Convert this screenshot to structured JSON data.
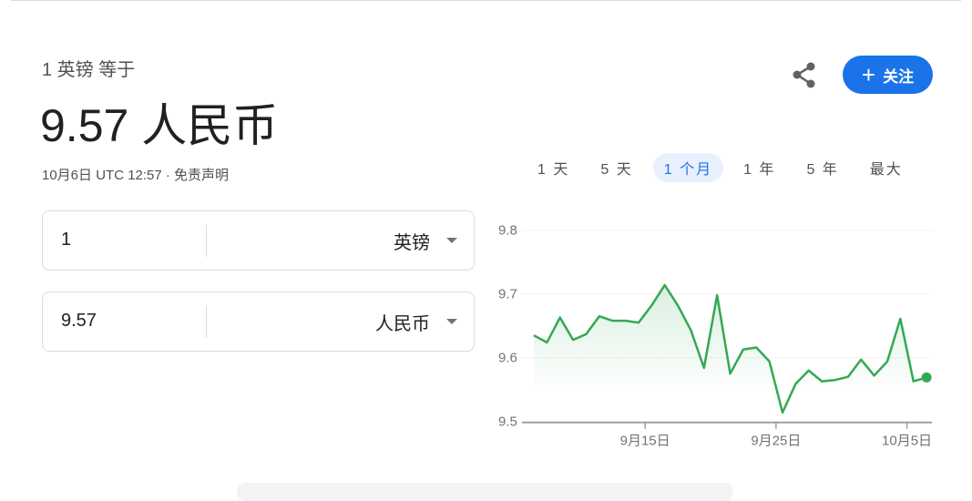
{
  "header": {
    "subtitle": "1 英镑 等于",
    "result": "9.57 人民币",
    "meta": "10月6日 UTC 12:57 · 免责声明",
    "follow_label": "关注",
    "follow_icon": "plus-icon",
    "share_icon": "share-icon"
  },
  "ranges": [
    {
      "label": "1 天"
    },
    {
      "label": "5 天"
    },
    {
      "label": "1 个月",
      "active": true
    },
    {
      "label": "1 年"
    },
    {
      "label": "5 年"
    },
    {
      "label": "最大"
    }
  ],
  "converter": {
    "from": {
      "value": "1",
      "currency": "英镑"
    },
    "to": {
      "value": "9.57",
      "currency": "人民币"
    }
  },
  "colors": {
    "line": "#34a853",
    "accent": "#1a73e8"
  },
  "chart_data": {
    "type": "line",
    "ylim": [
      9.5,
      9.8
    ],
    "yticks": [
      "9.8",
      "9.7",
      "9.6",
      "9.5"
    ],
    "xticks": [
      {
        "label": "9月15日",
        "day": 9
      },
      {
        "label": "9月25日",
        "day": 19
      },
      {
        "label": "10月5日",
        "day": 29
      }
    ],
    "grid": true,
    "values": [
      9.635,
      9.624,
      9.663,
      9.628,
      9.637,
      9.665,
      9.658,
      9.658,
      9.655,
      9.682,
      9.714,
      9.682,
      9.643,
      9.584,
      9.698,
      9.575,
      9.613,
      9.616,
      9.594,
      9.514,
      9.559,
      9.58,
      9.563,
      9.565,
      9.57,
      9.597,
      9.572,
      9.594,
      9.661,
      9.563,
      9.569
    ]
  }
}
